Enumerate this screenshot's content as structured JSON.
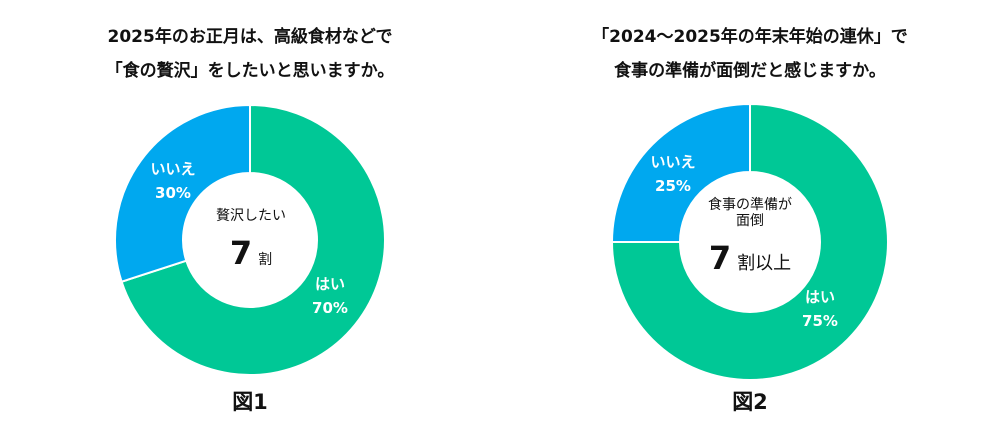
{
  "chart_data": [
    {
      "type": "pie",
      "title": [
        "2025年のお正月は、高級食材などで",
        "「食の贅沢」をしたいと思いますか。"
      ],
      "slices": [
        {
          "label": "はい",
          "value": 70,
          "value_label": "70%",
          "color": "#00c896"
        },
        {
          "label": "いいえ",
          "value": 30,
          "value_label": "30%",
          "color": "#00a8ef"
        }
      ],
      "center_label": "贅沢したい",
      "center_value": "7",
      "center_unit": "割",
      "figure_label": "図1"
    },
    {
      "type": "pie",
      "title": [
        "「2024～2025年の年末年始の連休」で",
        "食事の準備が面倒だと感じますか。"
      ],
      "slices": [
        {
          "label": "はい",
          "value": 75,
          "value_label": "75%",
          "color": "#00c896"
        },
        {
          "label": "いいえ",
          "value": 25,
          "value_label": "25%",
          "color": "#00a8ef"
        }
      ],
      "center_label": [
        "食事の準備が",
        "面倒"
      ],
      "center_value": "7",
      "center_unit": "割以上",
      "figure_label": "図2"
    }
  ]
}
